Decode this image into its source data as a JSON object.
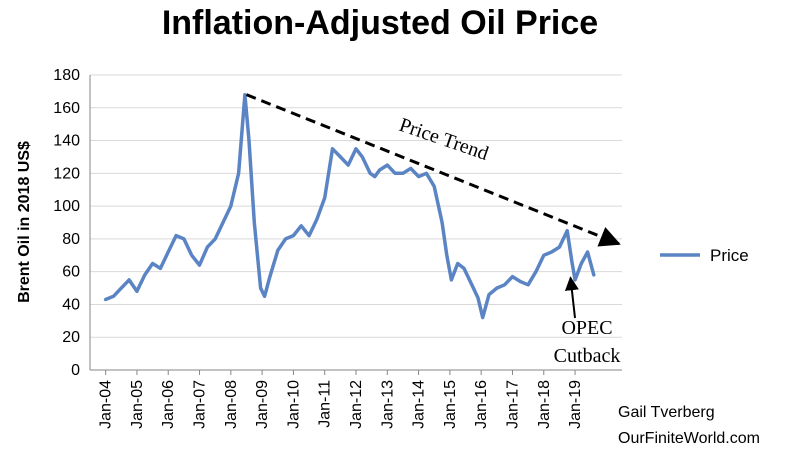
{
  "chart_data": {
    "type": "line",
    "title": "Inflation-Adjusted Oil Price",
    "ylabel": "Brent Oil in  2018 US$",
    "xlabel": "",
    "ylim": [
      0,
      180
    ],
    "yticks": [
      "0",
      "20",
      "40",
      "60",
      "80",
      "100",
      "120",
      "140",
      "160",
      "180"
    ],
    "categories": [
      "Jan-04",
      "Jan-05",
      "Jan-06",
      "Jan-07",
      "Jan-08",
      "Jan-09",
      "Jan-10",
      "Jan-11",
      "Jan-12",
      "Jan-13",
      "Jan-14",
      "Jan-15",
      "Jan-16",
      "Jan-17",
      "Jan-18",
      "Jan-19"
    ],
    "legend_placement": "right",
    "grid": true,
    "series": [
      {
        "name": "Price",
        "color": "#5b84c4",
        "x": [
          2004.0,
          2004.25,
          2004.5,
          2004.75,
          2005.0,
          2005.25,
          2005.5,
          2005.75,
          2006.0,
          2006.25,
          2006.5,
          2006.75,
          2007.0,
          2007.25,
          2007.5,
          2007.75,
          2008.0,
          2008.25,
          2008.45,
          2008.58,
          2008.75,
          2008.95,
          2009.08,
          2009.25,
          2009.5,
          2009.75,
          2010.0,
          2010.25,
          2010.5,
          2010.75,
          2011.0,
          2011.25,
          2011.5,
          2011.75,
          2012.0,
          2012.2,
          2012.45,
          2012.6,
          2012.75,
          2013.0,
          2013.25,
          2013.5,
          2013.75,
          2014.0,
          2014.25,
          2014.5,
          2014.75,
          2014.9,
          2015.05,
          2015.25,
          2015.45,
          2015.7,
          2015.9,
          2016.05,
          2016.25,
          2016.5,
          2016.75,
          2017.0,
          2017.25,
          2017.5,
          2017.75,
          2018.0,
          2018.25,
          2018.5,
          2018.75,
          2018.9,
          2019.0,
          2019.2,
          2019.4,
          2019.6
        ],
        "values": [
          43,
          45,
          50,
          55,
          48,
          58,
          65,
          62,
          72,
          82,
          80,
          70,
          64,
          75,
          80,
          90,
          100,
          120,
          168,
          140,
          90,
          50,
          45,
          57,
          73,
          80,
          82,
          88,
          82,
          92,
          105,
          135,
          130,
          125,
          135,
          130,
          120,
          118,
          122,
          125,
          120,
          120,
          123,
          118,
          120,
          112,
          90,
          70,
          55,
          65,
          62,
          52,
          44,
          32,
          46,
          50,
          52,
          57,
          54,
          52,
          60,
          70,
          72,
          75,
          85,
          66,
          55,
          65,
          72,
          58
        ]
      }
    ],
    "annotations": {
      "trend_label": "Price Trend",
      "trend_line": {
        "from": {
          "x": 2008.5,
          "y": 168
        },
        "to": {
          "x": 2020.4,
          "y": 77
        }
      },
      "cutback_label_1": "OPEC",
      "cutback_label_2": "Cutback",
      "cutback_arrow_target": {
        "x": 2018.95,
        "y": 60
      }
    }
  },
  "credit": {
    "line1": "Gail Tverberg",
    "line2": "OurFiniteWorld.com"
  }
}
